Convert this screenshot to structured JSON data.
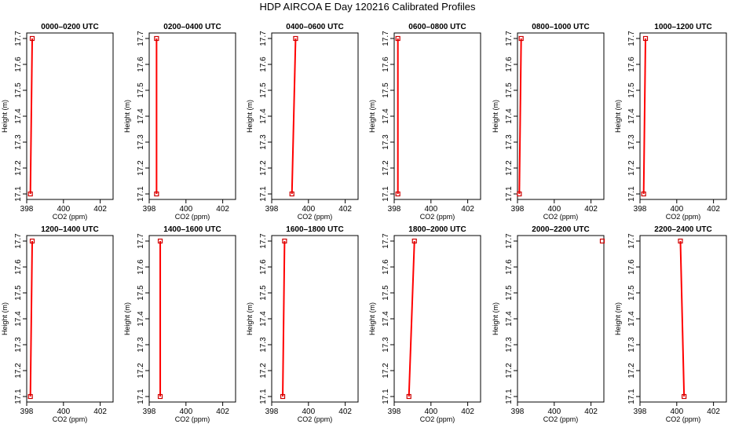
{
  "title": "HDP AIRCOA E  Day 120216  Calibrated Profiles",
  "chart_data": {
    "type": "line",
    "xlabel": "CO2 (ppm)",
    "ylabel": "Height (m)",
    "xlim": [
      398,
      402.7
    ],
    "ylim": [
      17.1,
      17.7
    ],
    "xticks": [
      "398",
      "400",
      "402"
    ],
    "yticks": [
      "17.1",
      "17.2",
      "17.3",
      "17.4",
      "17.5",
      "17.6",
      "17.7"
    ],
    "line_color": "#ff0000",
    "marker_color": "#cc0000",
    "panels": [
      {
        "title": "0000–0200 UTC",
        "x": [
          398.2,
          398.3
        ],
        "y": [
          17.1,
          17.7
        ]
      },
      {
        "title": "0200–0400 UTC",
        "x": [
          398.4,
          398.4
        ],
        "y": [
          17.1,
          17.7
        ]
      },
      {
        "title": "0400–0600 UTC",
        "x": [
          399.1,
          399.3
        ],
        "y": [
          17.1,
          17.7
        ]
      },
      {
        "title": "0600–0800 UTC",
        "x": [
          398.2,
          398.2
        ],
        "y": [
          17.1,
          17.7
        ]
      },
      {
        "title": "0800–1000 UTC",
        "x": [
          398.1,
          398.2
        ],
        "y": [
          17.1,
          17.7
        ]
      },
      {
        "title": "1000–1200 UTC",
        "x": [
          398.2,
          398.3
        ],
        "y": [
          17.1,
          17.7
        ]
      },
      {
        "title": "1200–1400 UTC",
        "x": [
          398.2,
          398.3
        ],
        "y": [
          17.1,
          17.7
        ]
      },
      {
        "title": "1400–1600 UTC",
        "x": [
          398.6,
          398.6
        ],
        "y": [
          17.1,
          17.7
        ]
      },
      {
        "title": "1600–1800 UTC",
        "x": [
          398.6,
          398.7
        ],
        "y": [
          17.1,
          17.7
        ]
      },
      {
        "title": "1800–2000 UTC",
        "x": [
          398.8,
          399.1
        ],
        "y": [
          17.1,
          17.7
        ]
      },
      {
        "title": "2000–2200 UTC",
        "x": [
          402.7
        ],
        "y": [
          17.7
        ]
      },
      {
        "title": "2200–2400 UTC",
        "x": [
          400.4,
          400.2
        ],
        "y": [
          17.1,
          17.7
        ]
      }
    ]
  }
}
